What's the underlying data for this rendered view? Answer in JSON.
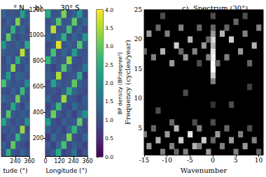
{
  "chart_data": [
    {
      "type": "heatmap",
      "title": "° N",
      "xlabel": "tude (°)",
      "x_edges": [
        120,
        160,
        200,
        240,
        280,
        320,
        360
      ],
      "y_edges": [
        60,
        120,
        180,
        240,
        300,
        360,
        420,
        480,
        540,
        600,
        660,
        720,
        780,
        840,
        900,
        960,
        1020,
        1080,
        1140,
        1200
      ],
      "z": [
        [
          1.0,
          2.5,
          1.1,
          0.9,
          1.3,
          1.0
        ],
        [
          1.2,
          0.9,
          3.0,
          1.1,
          1.0,
          0.8
        ],
        [
          0.8,
          1.1,
          1.0,
          2.6,
          1.2,
          1.1
        ],
        [
          1.1,
          1.0,
          1.2,
          1.0,
          3.4,
          0.9
        ],
        [
          2.3,
          1.2,
          0.9,
          1.1,
          1.0,
          2.0
        ],
        [
          1.0,
          2.9,
          1.1,
          1.0,
          1.2,
          1.0
        ],
        [
          0.9,
          1.0,
          2.4,
          1.2,
          0.8,
          1.3
        ],
        [
          1.3,
          1.1,
          1.0,
          3.1,
          1.1,
          1.0
        ],
        [
          1.0,
          0.9,
          1.2,
          1.0,
          2.7,
          1.1
        ],
        [
          2.8,
          1.2,
          1.0,
          1.1,
          1.0,
          1.9
        ],
        [
          1.1,
          2.2,
          0.9,
          1.3,
          1.2,
          1.0
        ],
        [
          1.0,
          1.1,
          3.3,
          1.0,
          0.9,
          1.2
        ],
        [
          0.9,
          1.3,
          1.0,
          2.5,
          1.1,
          1.0
        ],
        [
          1.2,
          1.0,
          1.1,
          1.0,
          3.6,
          1.1
        ],
        [
          2.1,
          1.1,
          1.0,
          1.2,
          1.0,
          2.4
        ],
        [
          1.0,
          3.0,
          1.2,
          0.9,
          1.1,
          1.0
        ],
        [
          1.1,
          1.0,
          2.6,
          1.1,
          1.3,
          0.9
        ],
        [
          0.9,
          1.2,
          1.0,
          3.2,
          1.0,
          1.1
        ],
        [
          1.3,
          1.0,
          1.1,
          1.0,
          2.3,
          1.2
        ]
      ],
      "xlim": [
        120,
        360
      ],
      "xticks": [
        240,
        360
      ],
      "ylim": [
        60,
        1200
      ],
      "tick_labels": "x"
    },
    {
      "type": "heatmap",
      "panel_label": "b)",
      "title": "30° S",
      "xlabel": "Longitude (°)",
      "x_edges": [
        0,
        45,
        90,
        135,
        180,
        225,
        270,
        315,
        360
      ],
      "y_edges": [
        60,
        120,
        180,
        240,
        300,
        360,
        420,
        480,
        540,
        600,
        660,
        720,
        780,
        840,
        900,
        960,
        1020,
        1080,
        1140,
        1200
      ],
      "z": [
        [
          0.9,
          1.2,
          2.4,
          0.8,
          1.0,
          1.5,
          0.7,
          1.1
        ],
        [
          1.1,
          0.8,
          1.3,
          2.8,
          0.9,
          1.2,
          1.0,
          0.8
        ],
        [
          0.7,
          1.4,
          1.0,
          1.1,
          3.2,
          1.0,
          0.9,
          1.3
        ],
        [
          1.2,
          0.9,
          1.1,
          0.8,
          1.3,
          2.6,
          1.1,
          0.9
        ],
        [
          2.2,
          1.0,
          0.8,
          1.2,
          1.0,
          1.1,
          3.0,
          1.0
        ],
        [
          1.0,
          3.1,
          1.1,
          0.9,
          1.2,
          0.8,
          1.3,
          2.0
        ],
        [
          0.8,
          1.2,
          2.7,
          1.0,
          0.9,
          1.4,
          1.0,
          1.1
        ],
        [
          1.3,
          0.9,
          1.0,
          3.4,
          1.1,
          1.0,
          0.8,
          1.2
        ],
        [
          1.0,
          1.1,
          0.9,
          1.2,
          2.5,
          1.3,
          1.0,
          0.9
        ],
        [
          0.9,
          2.3,
          1.2,
          1.0,
          1.1,
          3.0,
          1.2,
          1.0
        ],
        [
          1.2,
          1.0,
          3.5,
          0.9,
          1.0,
          1.1,
          2.4,
          0.8
        ],
        [
          1.1,
          0.8,
          1.1,
          2.9,
          1.3,
          0.9,
          1.0,
          1.6
        ],
        [
          2.6,
          1.2,
          1.0,
          1.1,
          3.3,
          1.0,
          0.9,
          1.1
        ],
        [
          1.0,
          2.8,
          0.9,
          1.3,
          1.0,
          2.2,
          1.1,
          1.0
        ],
        [
          0.9,
          1.1,
          3.8,
          1.0,
          1.2,
          1.0,
          2.9,
          1.2
        ],
        [
          1.3,
          1.0,
          1.2,
          2.5,
          0.9,
          1.3,
          1.0,
          2.1
        ],
        [
          1.1,
          3.6,
          1.0,
          1.1,
          2.8,
          1.0,
          1.2,
          0.9
        ],
        [
          1.0,
          1.2,
          2.9,
          1.0,
          1.1,
          3.0,
          1.0,
          1.3
        ],
        [
          2.4,
          1.0,
          1.1,
          3.2,
          1.0,
          1.2,
          2.2,
          1.0
        ]
      ],
      "xlim": [
        0,
        360
      ],
      "xticks": [
        0,
        120,
        240,
        360
      ],
      "ylim": [
        60,
        1200
      ],
      "yticks": [
        200,
        400,
        600,
        800,
        1000,
        1200
      ],
      "colorbar": {
        "label": "BP density (BP/degree²)",
        "range": [
          0,
          4
        ],
        "ticks": [
          {
            "value": 0,
            "label": "0.0"
          },
          0.5,
          {
            "value": 1,
            "label": "1.0"
          },
          1.5,
          {
            "value": 2,
            "label": "2.0"
          },
          2.5,
          {
            "value": 3,
            "label": "3.0"
          },
          3.5,
          {
            "value": 4,
            "label": "4.0"
          }
        ]
      }
    },
    {
      "type": "heatmap",
      "panel_label": "c)",
      "title": "Spectrum (30°)",
      "xlabel": "Wavenumber",
      "ylabel": "Frequency (cycles/year)",
      "cell_size": [
        1,
        1
      ],
      "power_range": [
        0,
        1
      ],
      "cells": [
        [
          0,
          13,
          0.5
        ],
        [
          0,
          14,
          0.8
        ],
        [
          0,
          15,
          1
        ],
        [
          0,
          16,
          1
        ],
        [
          0,
          17,
          0.95
        ],
        [
          0,
          18,
          0.9
        ],
        [
          0,
          19,
          0.7
        ],
        [
          0,
          20,
          0.85
        ],
        [
          0,
          21,
          0.6
        ],
        [
          0,
          22,
          0.4
        ],
        [
          0,
          24,
          0.3
        ],
        [
          0,
          6,
          0.3
        ],
        [
          0,
          3,
          0.4
        ],
        [
          0,
          9,
          0.2
        ],
        [
          -1,
          17,
          0.5
        ],
        [
          -1,
          20,
          0.4
        ],
        [
          1,
          16,
          0.4
        ],
        [
          -14,
          21,
          0.6
        ],
        [
          -13,
          17,
          0.5
        ],
        [
          -12,
          22,
          0.4
        ],
        [
          -11,
          18,
          0.7
        ],
        [
          -10,
          21,
          0.5
        ],
        [
          -9,
          16,
          0.6
        ],
        [
          -8,
          19,
          0.8
        ],
        [
          -7,
          22,
          0.5
        ],
        [
          -6,
          17,
          0.6
        ],
        [
          -5,
          20,
          0.7
        ],
        [
          -4,
          18,
          0.5
        ],
        [
          -3,
          22,
          0.4
        ],
        [
          -2,
          19,
          0.6
        ],
        [
          2,
          21,
          0.7
        ],
        [
          3,
          17,
          0.5
        ],
        [
          4,
          20,
          0.8
        ],
        [
          5,
          23,
          0.4
        ],
        [
          6,
          18,
          0.6
        ],
        [
          7,
          21,
          0.5
        ],
        [
          8,
          16,
          0.4
        ],
        [
          9,
          19,
          0.7
        ],
        [
          10,
          22,
          0.5
        ],
        [
          -15,
          18,
          0.4
        ],
        [
          -7,
          18,
          0.4
        ],
        [
          -3,
          16,
          0.3
        ],
        [
          3,
          22,
          0.4
        ],
        [
          7,
          24,
          0.3
        ],
        [
          -11,
          24,
          0.3
        ],
        [
          -6,
          11,
          0.3
        ],
        [
          4,
          9,
          0.3
        ],
        [
          -12,
          8,
          0.3
        ],
        [
          8,
          12,
          0.25
        ],
        [
          -15,
          4,
          0.5
        ],
        [
          -14,
          2,
          0.6
        ],
        [
          -13,
          5,
          0.4
        ],
        [
          -12,
          3,
          0.7
        ],
        [
          -11,
          1,
          0.5
        ],
        [
          -10,
          4,
          0.6
        ],
        [
          -9,
          2,
          0.5
        ],
        [
          -8,
          5,
          0.7
        ],
        [
          -7,
          3,
          0.8
        ],
        [
          -6,
          1,
          0.5
        ],
        [
          -5,
          4,
          0.9
        ],
        [
          -4,
          2,
          0.7
        ],
        [
          -3,
          5,
          0.5
        ],
        [
          -2,
          3,
          0.8
        ],
        [
          -1,
          1,
          0.6
        ],
        [
          1,
          4,
          0.6
        ],
        [
          2,
          2,
          0.5
        ],
        [
          3,
          5,
          0.4
        ],
        [
          4,
          3,
          0.6
        ],
        [
          5,
          1,
          0.5
        ],
        [
          6,
          4,
          0.5
        ],
        [
          7,
          2,
          0.6
        ],
        [
          8,
          5,
          0.3
        ],
        [
          9,
          3,
          0.5
        ],
        [
          10,
          1,
          0.4
        ],
        [
          -9,
          6,
          0.4
        ],
        [
          -4,
          6,
          0.3
        ],
        [
          -8,
          1,
          0.4
        ],
        [
          -3,
          2,
          0.5
        ]
      ],
      "xlim": [
        -15,
        11
      ],
      "xticks": [
        -15,
        -10,
        -5,
        0,
        5,
        10
      ],
      "ylim": [
        0.5,
        25
      ],
      "yticks": [
        5,
        10,
        15,
        20,
        25
      ]
    }
  ]
}
